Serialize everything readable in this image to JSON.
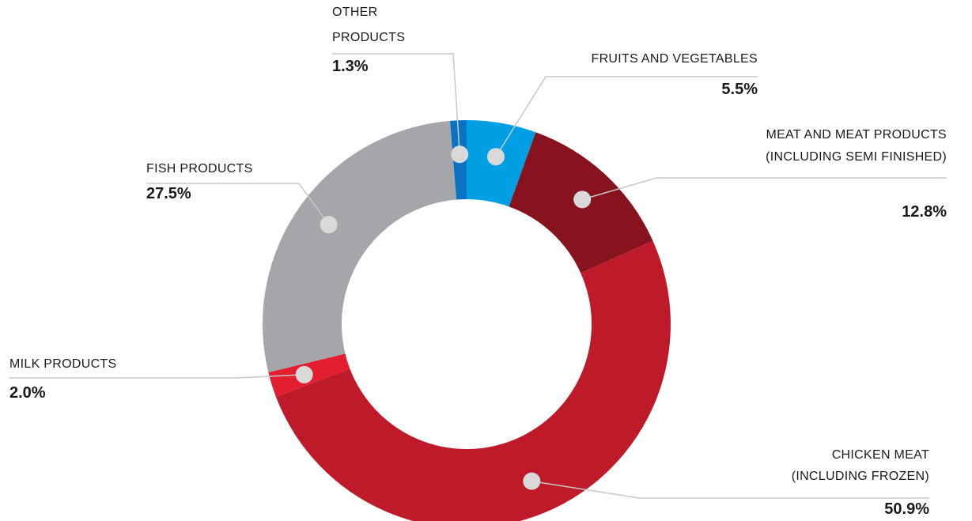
{
  "chart_data": {
    "type": "donut",
    "categories": [
      "FRUITS AND VEGETABLES",
      "MEAT AND MEAT PRODUCTS\n(INCLUDING SEMI FINISHED)",
      "CHICKEN MEAT\n(INCLUDING FROZEN)",
      "MILK PRODUCTS",
      "FISH PRODUCTS",
      "OTHER\nPRODUCTS"
    ],
    "values": [
      5.5,
      12.8,
      50.9,
      2.0,
      27.5,
      1.3
    ],
    "value_labels": [
      "5.5%",
      "12.8%",
      "50.9%",
      "2.0%",
      "27.5%",
      "1.3%"
    ],
    "colors": [
      "#009fe3",
      "#87131f",
      "#be1a2a",
      "#e31e30",
      "#a5a6a9",
      "#0a72c2"
    ]
  }
}
